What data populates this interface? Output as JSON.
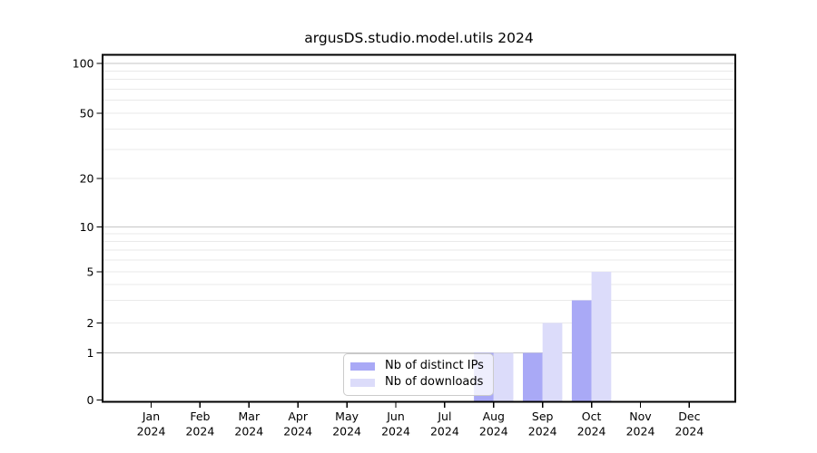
{
  "chart_data": {
    "type": "bar",
    "title": "argusDS.studio.model.utils 2024",
    "x_year": "2024",
    "categories": [
      "Jan",
      "Feb",
      "Mar",
      "Apr",
      "May",
      "Jun",
      "Jul",
      "Aug",
      "Sep",
      "Oct",
      "Nov",
      "Dec"
    ],
    "series": [
      {
        "name": "Nb of distinct IPs",
        "color": "#a9a9f6",
        "values": [
          0,
          0,
          0,
          0,
          0,
          0,
          0,
          1,
          1,
          3,
          0,
          0
        ]
      },
      {
        "name": "Nb of downloads",
        "color": "#dcdcfa",
        "values": [
          0,
          0,
          0,
          0,
          0,
          0,
          0,
          1,
          2,
          5,
          0,
          0
        ]
      }
    ],
    "xlabel": "",
    "ylabel": "",
    "y_axis": {
      "scale": "log-like",
      "major_ticks": [
        0,
        1,
        2,
        5,
        10,
        20,
        50,
        100
      ],
      "minor_gridlines": [
        3,
        4,
        6,
        7,
        8,
        9,
        30,
        40,
        60,
        70,
        80,
        90
      ],
      "decade_gridlines": [
        1,
        10,
        100
      ],
      "ylim": [
        0,
        110
      ]
    },
    "grid": {
      "horizontal": true,
      "vertical": false
    },
    "legend": {
      "position": "lower-center"
    },
    "colors": {
      "grid_minor": "#eaeaea",
      "grid_decade": "#c6c6c6",
      "axis_line": "#000000",
      "tick_text": "#000000",
      "legend_border": "#cbcbcb"
    }
  }
}
